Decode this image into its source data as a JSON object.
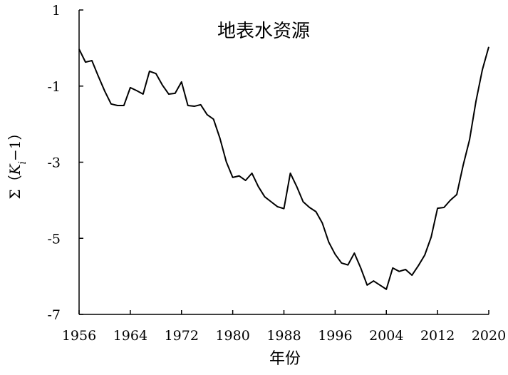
{
  "chart_data": {
    "type": "line",
    "title": "地表水资源",
    "xlabel": "年份",
    "ylabel_parts": [
      "Σ（",
      "K",
      "i",
      "−1）"
    ],
    "x": [
      1956,
      1957,
      1958,
      1959,
      1960,
      1961,
      1962,
      1963,
      1964,
      1965,
      1966,
      1967,
      1968,
      1969,
      1970,
      1971,
      1972,
      1973,
      1974,
      1975,
      1976,
      1977,
      1978,
      1979,
      1980,
      1981,
      1982,
      1983,
      1984,
      1985,
      1986,
      1987,
      1988,
      1989,
      1990,
      1991,
      1992,
      1993,
      1994,
      1995,
      1996,
      1997,
      1998,
      1999,
      2000,
      2001,
      2002,
      2003,
      2004,
      2005,
      2006,
      2007,
      2008,
      2009,
      2010,
      2011,
      2012,
      2013,
      2014,
      2015,
      2016,
      2017,
      2018,
      2019,
      2020
    ],
    "series": [
      {
        "color": "#000000",
        "values": [
          -0.03,
          -0.37,
          -0.33,
          -0.74,
          -1.13,
          -1.47,
          -1.51,
          -1.51,
          -1.04,
          -1.12,
          -1.21,
          -0.61,
          -0.67,
          -0.97,
          -1.21,
          -1.19,
          -0.89,
          -1.51,
          -1.53,
          -1.49,
          -1.75,
          -1.87,
          -2.37,
          -2.99,
          -3.4,
          -3.36,
          -3.48,
          -3.29,
          -3.64,
          -3.91,
          -4.04,
          -4.17,
          -4.22,
          -3.29,
          -3.64,
          -4.04,
          -4.19,
          -4.3,
          -4.6,
          -5.1,
          -5.42,
          -5.65,
          -5.7,
          -5.39,
          -5.78,
          -6.23,
          -6.12,
          -6.23,
          -6.34,
          -5.78,
          -5.87,
          -5.82,
          -5.97,
          -5.72,
          -5.44,
          -4.97,
          -4.21,
          -4.19,
          -4.0,
          -3.85,
          -3.08,
          -2.41,
          -1.4,
          -0.57,
          0.03
        ]
      }
    ],
    "xlim": [
      1956,
      2020
    ],
    "xticks": [
      1956,
      1964,
      1972,
      1980,
      1988,
      1996,
      2004,
      2012,
      2020
    ],
    "ylim": [
      -7,
      1
    ],
    "yticks": [
      1,
      -1,
      -3,
      -5,
      -7
    ],
    "grid": false
  }
}
